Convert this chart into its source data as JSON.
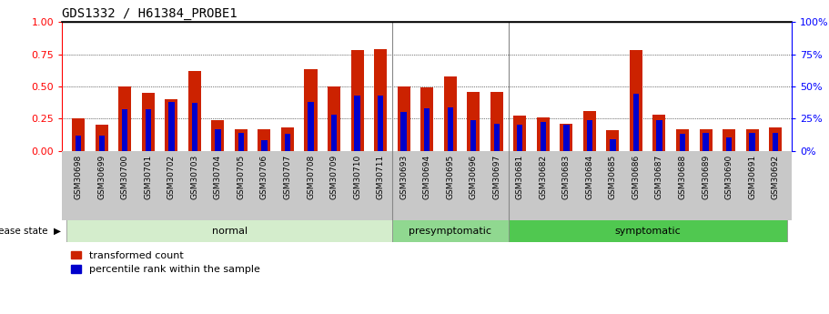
{
  "title": "GDS1332 / H61384_PROBE1",
  "samples": [
    "GSM30698",
    "GSM30699",
    "GSM30700",
    "GSM30701",
    "GSM30702",
    "GSM30703",
    "GSM30704",
    "GSM30705",
    "GSM30706",
    "GSM30707",
    "GSM30708",
    "GSM30709",
    "GSM30710",
    "GSM30711",
    "GSM30693",
    "GSM30694",
    "GSM30695",
    "GSM30696",
    "GSM30697",
    "GSM30681",
    "GSM30682",
    "GSM30683",
    "GSM30684",
    "GSM30685",
    "GSM30686",
    "GSM30687",
    "GSM30688",
    "GSM30689",
    "GSM30690",
    "GSM30691",
    "GSM30692"
  ],
  "transformed_count": [
    0.25,
    0.2,
    0.5,
    0.45,
    0.4,
    0.62,
    0.24,
    0.17,
    0.17,
    0.18,
    0.63,
    0.5,
    0.78,
    0.79,
    0.5,
    0.49,
    0.58,
    0.46,
    0.46,
    0.27,
    0.26,
    0.21,
    0.31,
    0.16,
    0.78,
    0.28,
    0.17,
    0.17,
    0.17,
    0.17,
    0.18
  ],
  "percentile_rank": [
    0.12,
    0.12,
    0.32,
    0.32,
    0.38,
    0.37,
    0.17,
    0.14,
    0.08,
    0.13,
    0.38,
    0.28,
    0.43,
    0.43,
    0.3,
    0.33,
    0.34,
    0.24,
    0.21,
    0.2,
    0.22,
    0.2,
    0.24,
    0.09,
    0.44,
    0.24,
    0.13,
    0.14,
    0.1,
    0.14,
    0.14
  ],
  "groups": [
    {
      "label": "normal",
      "start": 0,
      "end": 13,
      "color": "#d4edcc"
    },
    {
      "label": "presymptomatic",
      "start": 14,
      "end": 18,
      "color": "#90d890"
    },
    {
      "label": "symptomatic",
      "start": 19,
      "end": 30,
      "color": "#50c850"
    }
  ],
  "bar_color_red": "#cc2200",
  "bar_color_blue": "#0000cc",
  "ylim_left": [
    0,
    1.0
  ],
  "ylim_right": [
    0,
    100
  ],
  "yticks_left": [
    0,
    0.25,
    0.5,
    0.75,
    1.0
  ],
  "yticks_right": [
    0,
    25,
    50,
    75,
    100
  ],
  "legend_red": "transformed count",
  "legend_blue": "percentile rank within the sample",
  "disease_state_label": "disease state",
  "plot_bg": "#ffffff",
  "bar_width": 0.55,
  "blue_bar_width": 0.25,
  "group_sep_color": "#888888"
}
